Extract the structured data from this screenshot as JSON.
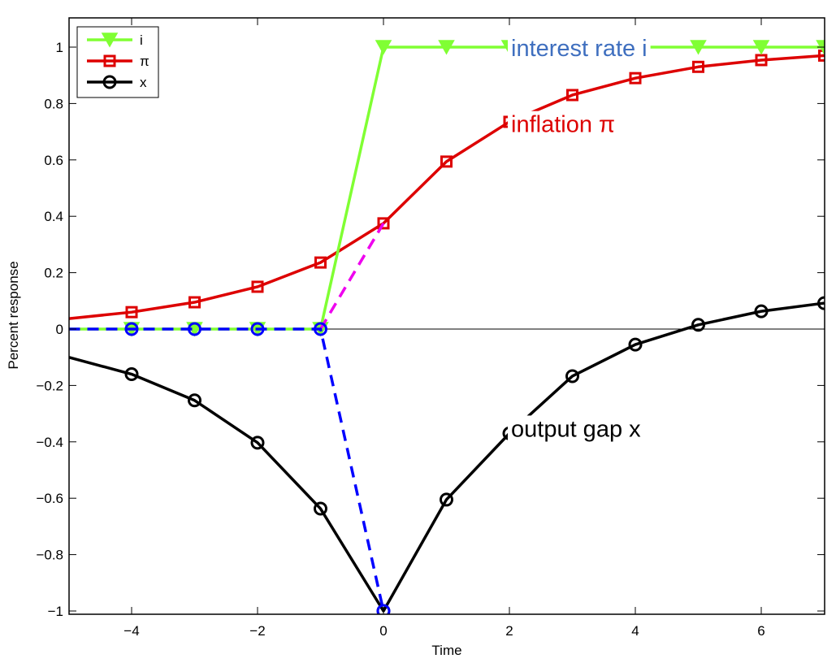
{
  "chart_data": {
    "type": "line",
    "title": "",
    "xlabel": "Time",
    "ylabel": "Percent response",
    "xlim": [
      -5,
      7
    ],
    "ylim": [
      -1.01,
      1.1
    ],
    "xticks": [
      -4,
      -2,
      0,
      2,
      4,
      6
    ],
    "xtick_labels": [
      "−4",
      "−2",
      "0",
      "2",
      "4",
      "6"
    ],
    "yticks": [
      -1,
      -0.8,
      -0.6,
      -0.4,
      -0.2,
      0,
      0.2,
      0.4,
      0.6,
      0.8,
      1
    ],
    "ytick_labels": [
      "−1",
      "−0.8",
      "−0.6",
      "−0.4",
      "−0.2",
      "0",
      "0.2",
      "0.4",
      "0.6",
      "0.8",
      "1"
    ],
    "grid": false,
    "zero_line": true,
    "legend_position": "upper left",
    "x": [
      -5,
      -4,
      -3,
      -2,
      -1,
      0,
      1,
      2,
      3,
      4,
      5,
      6,
      7
    ],
    "series": [
      {
        "name": "i",
        "color": "#80ff33",
        "marker": "triangle-down",
        "line": "solid",
        "values": [
          0,
          0,
          0,
          0,
          0,
          1,
          1,
          1,
          1,
          1,
          1,
          1,
          1
        ]
      },
      {
        "name": "π",
        "color": "#dd0000",
        "marker": "square",
        "line": "solid",
        "values": [
          0.037,
          0.06,
          0.095,
          0.15,
          0.236,
          0.375,
          0.594,
          0.735,
          0.83,
          0.89,
          0.93,
          0.954,
          0.97
        ]
      },
      {
        "name": "x",
        "color": "#000000",
        "marker": "circle",
        "line": "solid",
        "values": [
          -0.1,
          -0.16,
          -0.253,
          -0.403,
          -0.637,
          -1.0,
          -0.605,
          -0.37,
          -0.167,
          -0.055,
          0.015,
          0.063,
          0.092
        ]
      },
      {
        "name": "expected path (blue dashed)",
        "color": "#0000ff",
        "marker": "circle",
        "line": "dashed",
        "x": [
          -5,
          -4,
          -3,
          -2,
          -1,
          0
        ],
        "values": [
          0,
          0,
          0,
          0,
          0,
          -1.0
        ],
        "in_legend": false
      },
      {
        "name": "expected inflation path (magenta dashed)",
        "color": "#ee00ee",
        "marker": "none",
        "line": "dashed",
        "x": [
          -1,
          0
        ],
        "values": [
          0,
          0.375
        ],
        "in_legend": false
      }
    ],
    "annotations": [
      {
        "text": "interest rate i",
        "x": 2.0,
        "y": 1.0,
        "color": "#3f6fbf"
      },
      {
        "text": "inflation π",
        "x": 2.0,
        "y": 0.73,
        "color": "#dd0000"
      },
      {
        "text": "output gap x",
        "x": 2.0,
        "y": -0.35,
        "color": "#000000"
      }
    ],
    "legend": [
      {
        "label": "i",
        "color": "#80ff33",
        "marker": "triangle-down"
      },
      {
        "label": "π",
        "color": "#dd0000",
        "marker": "square"
      },
      {
        "label": "x",
        "color": "#000000",
        "marker": "circle"
      }
    ]
  }
}
